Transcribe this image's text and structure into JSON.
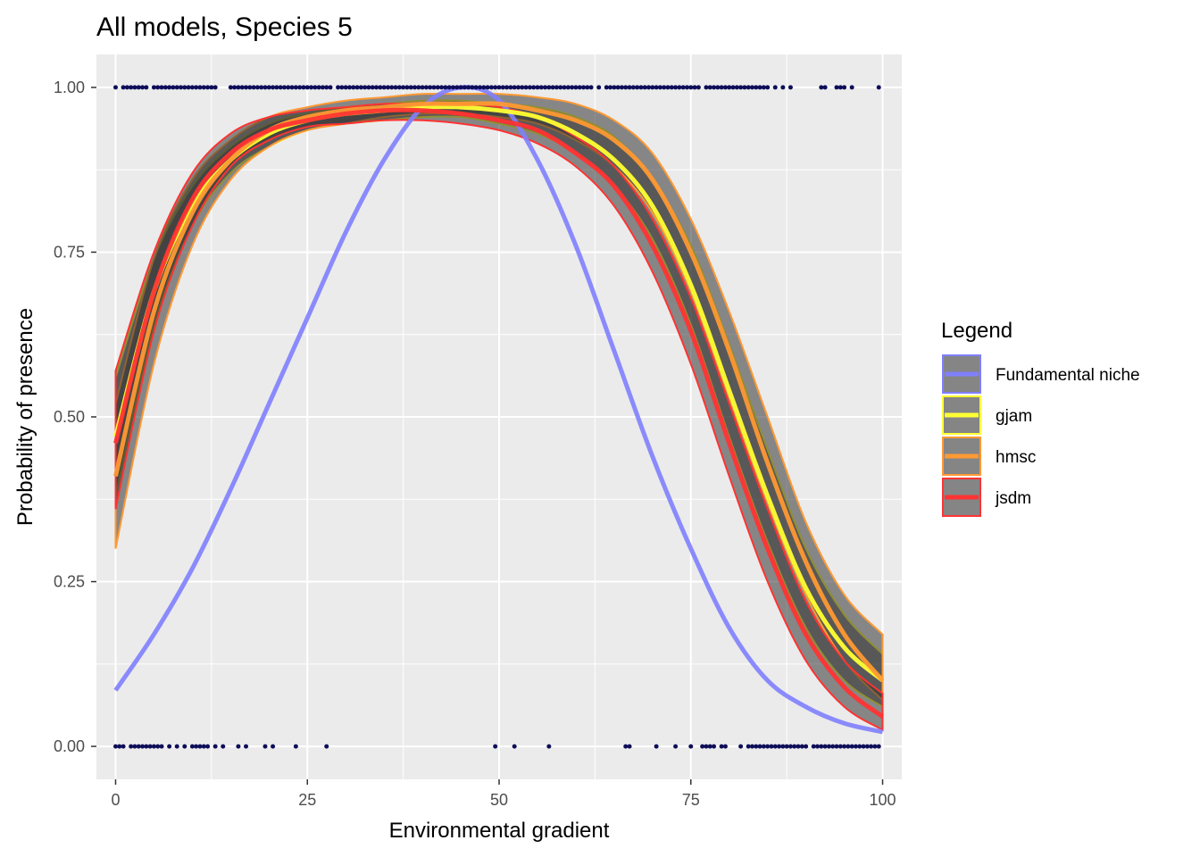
{
  "chart_data": {
    "type": "line",
    "title": "All models, Species 5",
    "xlabel": "Environmental gradient",
    "ylabel": "Probability of presence",
    "xlim": [
      -2.5,
      102.5
    ],
    "ylim": [
      -0.05,
      1.05
    ],
    "x_ticks": [
      0,
      25,
      50,
      75,
      100
    ],
    "x_tick_labels": [
      "0",
      "25",
      "50",
      "75",
      "100"
    ],
    "y_ticks": [
      0.0,
      0.25,
      0.5,
      0.75,
      1.0
    ],
    "y_tick_labels": [
      "0.00",
      "0.25",
      "0.50",
      "0.75",
      "1.00"
    ],
    "grid": true,
    "legend": {
      "title": "Legend",
      "position": "right",
      "entries": [
        {
          "label": "Fundamental niche",
          "color": "#8080ff"
        },
        {
          "label": "gjam",
          "color": "#ffff33"
        },
        {
          "label": "hmsc",
          "color": "#ff9933"
        },
        {
          "label": "jsdm",
          "color": "#ff3333"
        }
      ]
    },
    "series": [
      {
        "name": "Fundamental niche",
        "color": "#8080ff",
        "x": [
          0,
          5,
          10,
          15,
          20,
          25,
          30,
          35,
          40,
          45,
          50,
          55,
          60,
          65,
          70,
          75,
          80,
          85,
          90,
          95,
          100
        ],
        "y": [
          0.085,
          0.17,
          0.27,
          0.39,
          0.52,
          0.65,
          0.78,
          0.89,
          0.97,
          1.0,
          0.98,
          0.89,
          0.76,
          0.6,
          0.44,
          0.3,
          0.18,
          0.1,
          0.06,
          0.035,
          0.022
        ],
        "band": false
      },
      {
        "name": "gjam",
        "color": "#ffff33",
        "x": [
          0,
          5,
          10,
          15,
          20,
          25,
          30,
          35,
          40,
          45,
          50,
          55,
          60,
          65,
          70,
          75,
          80,
          85,
          90,
          95,
          100
        ],
        "y": [
          0.47,
          0.69,
          0.82,
          0.89,
          0.93,
          0.95,
          0.96,
          0.965,
          0.97,
          0.97,
          0.965,
          0.955,
          0.93,
          0.89,
          0.82,
          0.7,
          0.54,
          0.38,
          0.24,
          0.15,
          0.1
        ],
        "lower": [
          0.38,
          0.64,
          0.79,
          0.87,
          0.91,
          0.935,
          0.945,
          0.95,
          0.955,
          0.955,
          0.945,
          0.93,
          0.9,
          0.85,
          0.77,
          0.64,
          0.47,
          0.31,
          0.18,
          0.1,
          0.06
        ],
        "upper": [
          0.56,
          0.74,
          0.85,
          0.91,
          0.945,
          0.96,
          0.97,
          0.975,
          0.98,
          0.98,
          0.975,
          0.97,
          0.955,
          0.925,
          0.86,
          0.76,
          0.61,
          0.45,
          0.3,
          0.2,
          0.14
        ]
      },
      {
        "name": "hmsc",
        "color": "#ff9933",
        "x": [
          0,
          5,
          10,
          15,
          20,
          25,
          30,
          35,
          40,
          45,
          50,
          55,
          60,
          65,
          70,
          75,
          80,
          85,
          90,
          95,
          100
        ],
        "y": [
          0.41,
          0.66,
          0.81,
          0.89,
          0.935,
          0.955,
          0.965,
          0.97,
          0.975,
          0.975,
          0.975,
          0.965,
          0.95,
          0.92,
          0.86,
          0.75,
          0.6,
          0.43,
          0.28,
          0.17,
          0.1
        ],
        "lower": [
          0.3,
          0.58,
          0.76,
          0.86,
          0.91,
          0.935,
          0.945,
          0.955,
          0.96,
          0.96,
          0.955,
          0.945,
          0.92,
          0.88,
          0.81,
          0.69,
          0.53,
          0.37,
          0.23,
          0.13,
          0.07
        ],
        "upper": [
          0.52,
          0.74,
          0.86,
          0.92,
          0.955,
          0.97,
          0.98,
          0.985,
          0.99,
          0.99,
          0.99,
          0.985,
          0.975,
          0.95,
          0.9,
          0.8,
          0.66,
          0.5,
          0.34,
          0.23,
          0.17
        ]
      },
      {
        "name": "jsdm",
        "color": "#ff3333",
        "x": [
          0,
          5,
          10,
          15,
          20,
          25,
          30,
          35,
          40,
          45,
          50,
          55,
          60,
          65,
          70,
          75,
          80,
          85,
          90,
          95,
          100
        ],
        "y": [
          0.46,
          0.69,
          0.83,
          0.9,
          0.935,
          0.95,
          0.96,
          0.965,
          0.965,
          0.96,
          0.95,
          0.935,
          0.9,
          0.85,
          0.76,
          0.63,
          0.46,
          0.3,
          0.17,
          0.09,
          0.045
        ],
        "lower": [
          0.36,
          0.63,
          0.79,
          0.88,
          0.92,
          0.94,
          0.945,
          0.95,
          0.95,
          0.945,
          0.935,
          0.915,
          0.88,
          0.82,
          0.72,
          0.58,
          0.41,
          0.25,
          0.13,
          0.06,
          0.025
        ],
        "upper": [
          0.57,
          0.75,
          0.87,
          0.93,
          0.955,
          0.965,
          0.97,
          0.975,
          0.975,
          0.975,
          0.97,
          0.955,
          0.925,
          0.88,
          0.8,
          0.68,
          0.52,
          0.36,
          0.22,
          0.13,
          0.08
        ]
      }
    ],
    "observations": {
      "color": "#0d0d59",
      "presence_x": [
        0,
        1,
        1.5,
        2,
        2.5,
        3,
        3.5,
        4,
        5,
        5.5,
        6,
        6.5,
        7,
        7.5,
        8,
        8.5,
        9,
        9.5,
        10,
        10.5,
        11,
        11.5,
        12,
        12.5,
        13,
        15,
        15.5,
        16,
        16.5,
        17,
        17.5,
        18,
        18.5,
        19,
        19.5,
        20,
        20.5,
        21,
        21.5,
        22,
        22.5,
        23,
        23.5,
        24,
        24.5,
        25,
        25.5,
        26,
        26.5,
        27,
        27.5,
        28,
        29,
        29.5,
        30,
        30.5,
        31,
        31.5,
        32,
        32.5,
        33,
        33.5,
        34,
        34.5,
        35,
        35.5,
        36,
        36.5,
        37,
        37.5,
        38,
        38.5,
        39,
        39.5,
        40,
        40.5,
        41,
        41.5,
        42,
        42.5,
        43,
        43.5,
        44,
        44.5,
        45,
        45.5,
        46,
        46.5,
        47,
        47.5,
        48,
        48.5,
        49,
        49.5,
        50,
        50.5,
        51,
        51.5,
        52,
        52.5,
        53,
        53.5,
        54,
        54.5,
        55,
        55.5,
        56,
        56.5,
        57,
        57.5,
        58,
        58.5,
        59,
        59.5,
        60,
        60.5,
        61,
        61.5,
        62,
        63,
        64,
        64.5,
        65,
        65.5,
        66,
        66.5,
        67,
        67.5,
        68,
        68.5,
        69,
        69.5,
        70,
        70.5,
        71,
        71.5,
        72,
        72.5,
        73,
        73.5,
        74,
        74.5,
        75,
        75.5,
        76,
        77,
        77.5,
        78,
        78.5,
        79,
        79.5,
        80,
        80.5,
        81,
        81.5,
        82,
        82.5,
        83,
        83.5,
        84,
        84.5,
        85,
        86,
        87,
        88,
        92,
        92.5,
        94,
        94.5,
        95,
        96,
        99.5
      ],
      "absence_x": [
        0,
        0.5,
        1,
        2,
        2.5,
        3,
        3.5,
        4,
        4.5,
        5,
        5.5,
        6,
        7,
        8,
        9,
        10,
        10.5,
        11,
        11.5,
        12,
        13,
        14,
        16,
        17,
        19.5,
        20.5,
        23.5,
        27.5,
        49.5,
        52,
        56.5,
        66.5,
        67,
        70.5,
        73,
        75,
        76.5,
        77,
        77.5,
        78,
        79,
        79.5,
        81.5,
        82.5,
        83,
        83.5,
        84,
        84.5,
        85,
        85.5,
        86,
        86.5,
        87,
        87.5,
        88,
        88.5,
        89,
        89.5,
        90,
        91,
        91.5,
        92,
        92.5,
        93,
        93.5,
        94,
        94.5,
        95,
        95.5,
        96,
        96.5,
        97,
        97.5,
        98,
        98.5,
        99,
        99.5
      ]
    }
  }
}
